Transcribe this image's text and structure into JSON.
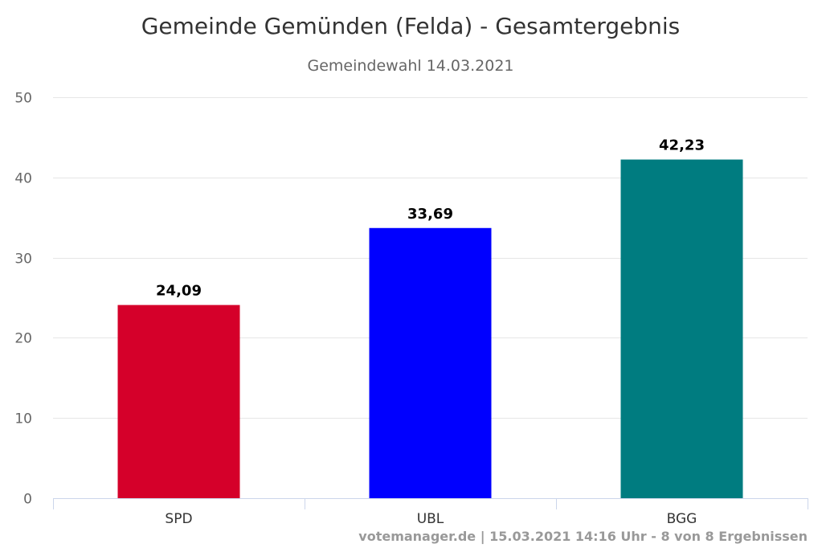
{
  "chart_data": {
    "type": "bar",
    "title": "Gemeinde Gemünden (Felda) - Gesamtergebnis",
    "subtitle": "Gemeindewahl 14.03.2021",
    "categories": [
      "SPD",
      "UBL",
      "BGG"
    ],
    "values": [
      24.09,
      33.69,
      42.23
    ],
    "value_labels": [
      "24,09",
      "33,69",
      "42,23"
    ],
    "colors": [
      "#d5002a",
      "#0000ff",
      "#007c80"
    ],
    "yticks": [
      0,
      10,
      20,
      30,
      40,
      50
    ],
    "ylim": [
      0,
      50
    ],
    "grid": true,
    "legend": "none"
  },
  "credits": "votemanager.de | 15.03.2021 14:16 Uhr - 8 von 8 Ergebnissen"
}
